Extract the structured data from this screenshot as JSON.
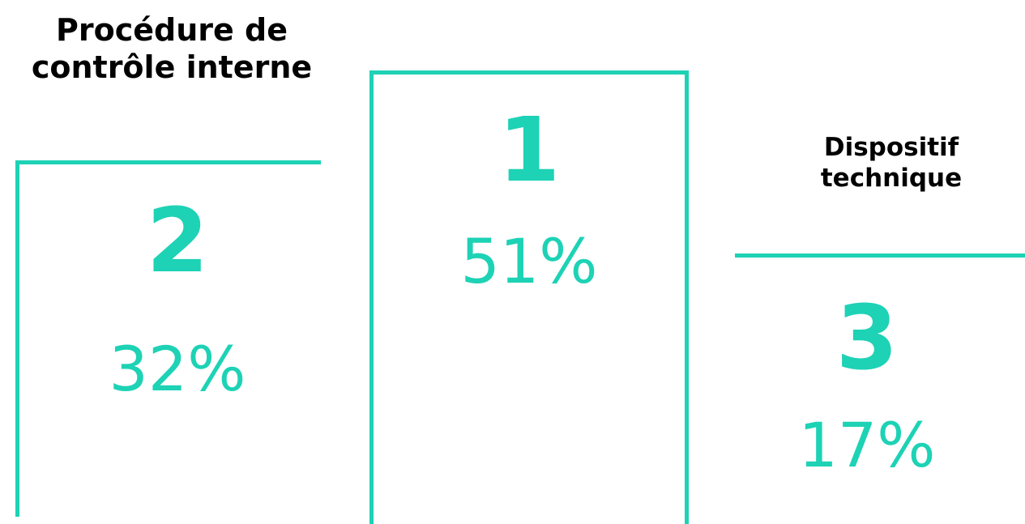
{
  "accent_color": "#1dd2b5",
  "chart_data": {
    "type": "podium",
    "series": [
      {
        "rank": "2",
        "value": 32,
        "label": "32%",
        "lines": [
          "Procédure de",
          "contrôle interne"
        ]
      },
      {
        "rank": "1",
        "value": 51,
        "label": "51%",
        "lines": []
      },
      {
        "rank": "3",
        "value": 17,
        "label": "17%",
        "lines": [
          "Dispositif",
          "technique"
        ]
      }
    ]
  }
}
